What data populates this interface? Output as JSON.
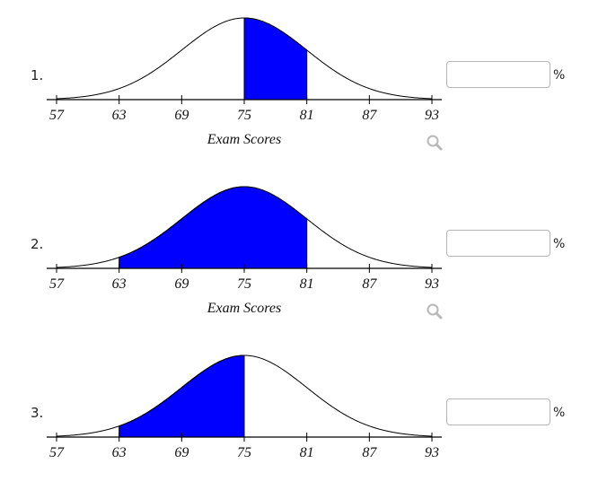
{
  "axis_title": "Exam Scores",
  "percent_symbol": "%",
  "icons": {
    "zoom": "magnifier-icon"
  },
  "colors": {
    "shade": "#0000ff",
    "curve": "#000000"
  },
  "problems": [
    {
      "number": "1.",
      "answer_value": "",
      "show_axis_title": true,
      "show_zoom": true
    },
    {
      "number": "2.",
      "answer_value": "",
      "show_axis_title": true,
      "show_zoom": true
    },
    {
      "number": "3.",
      "answer_value": "",
      "show_axis_title": false,
      "show_zoom": false
    }
  ],
  "chart_data": [
    {
      "type": "area",
      "distribution": "normal",
      "mean": 75,
      "sd": 6,
      "x_ticks": [
        57,
        63,
        69,
        75,
        81,
        87,
        93
      ],
      "xlabel": "Exam Scores",
      "xlim": [
        57,
        93
      ],
      "shaded_range": [
        75,
        81
      ]
    },
    {
      "type": "area",
      "distribution": "normal",
      "mean": 75,
      "sd": 6,
      "x_ticks": [
        57,
        63,
        69,
        75,
        81,
        87,
        93
      ],
      "xlabel": "Exam Scores",
      "xlim": [
        57,
        93
      ],
      "shaded_range": [
        63,
        81
      ]
    },
    {
      "type": "area",
      "distribution": "normal",
      "mean": 75,
      "sd": 6,
      "x_ticks": [
        57,
        63,
        69,
        75,
        81,
        87,
        93
      ],
      "xlabel": "",
      "xlim": [
        57,
        93
      ],
      "shaded_range": [
        63,
        75
      ]
    }
  ]
}
